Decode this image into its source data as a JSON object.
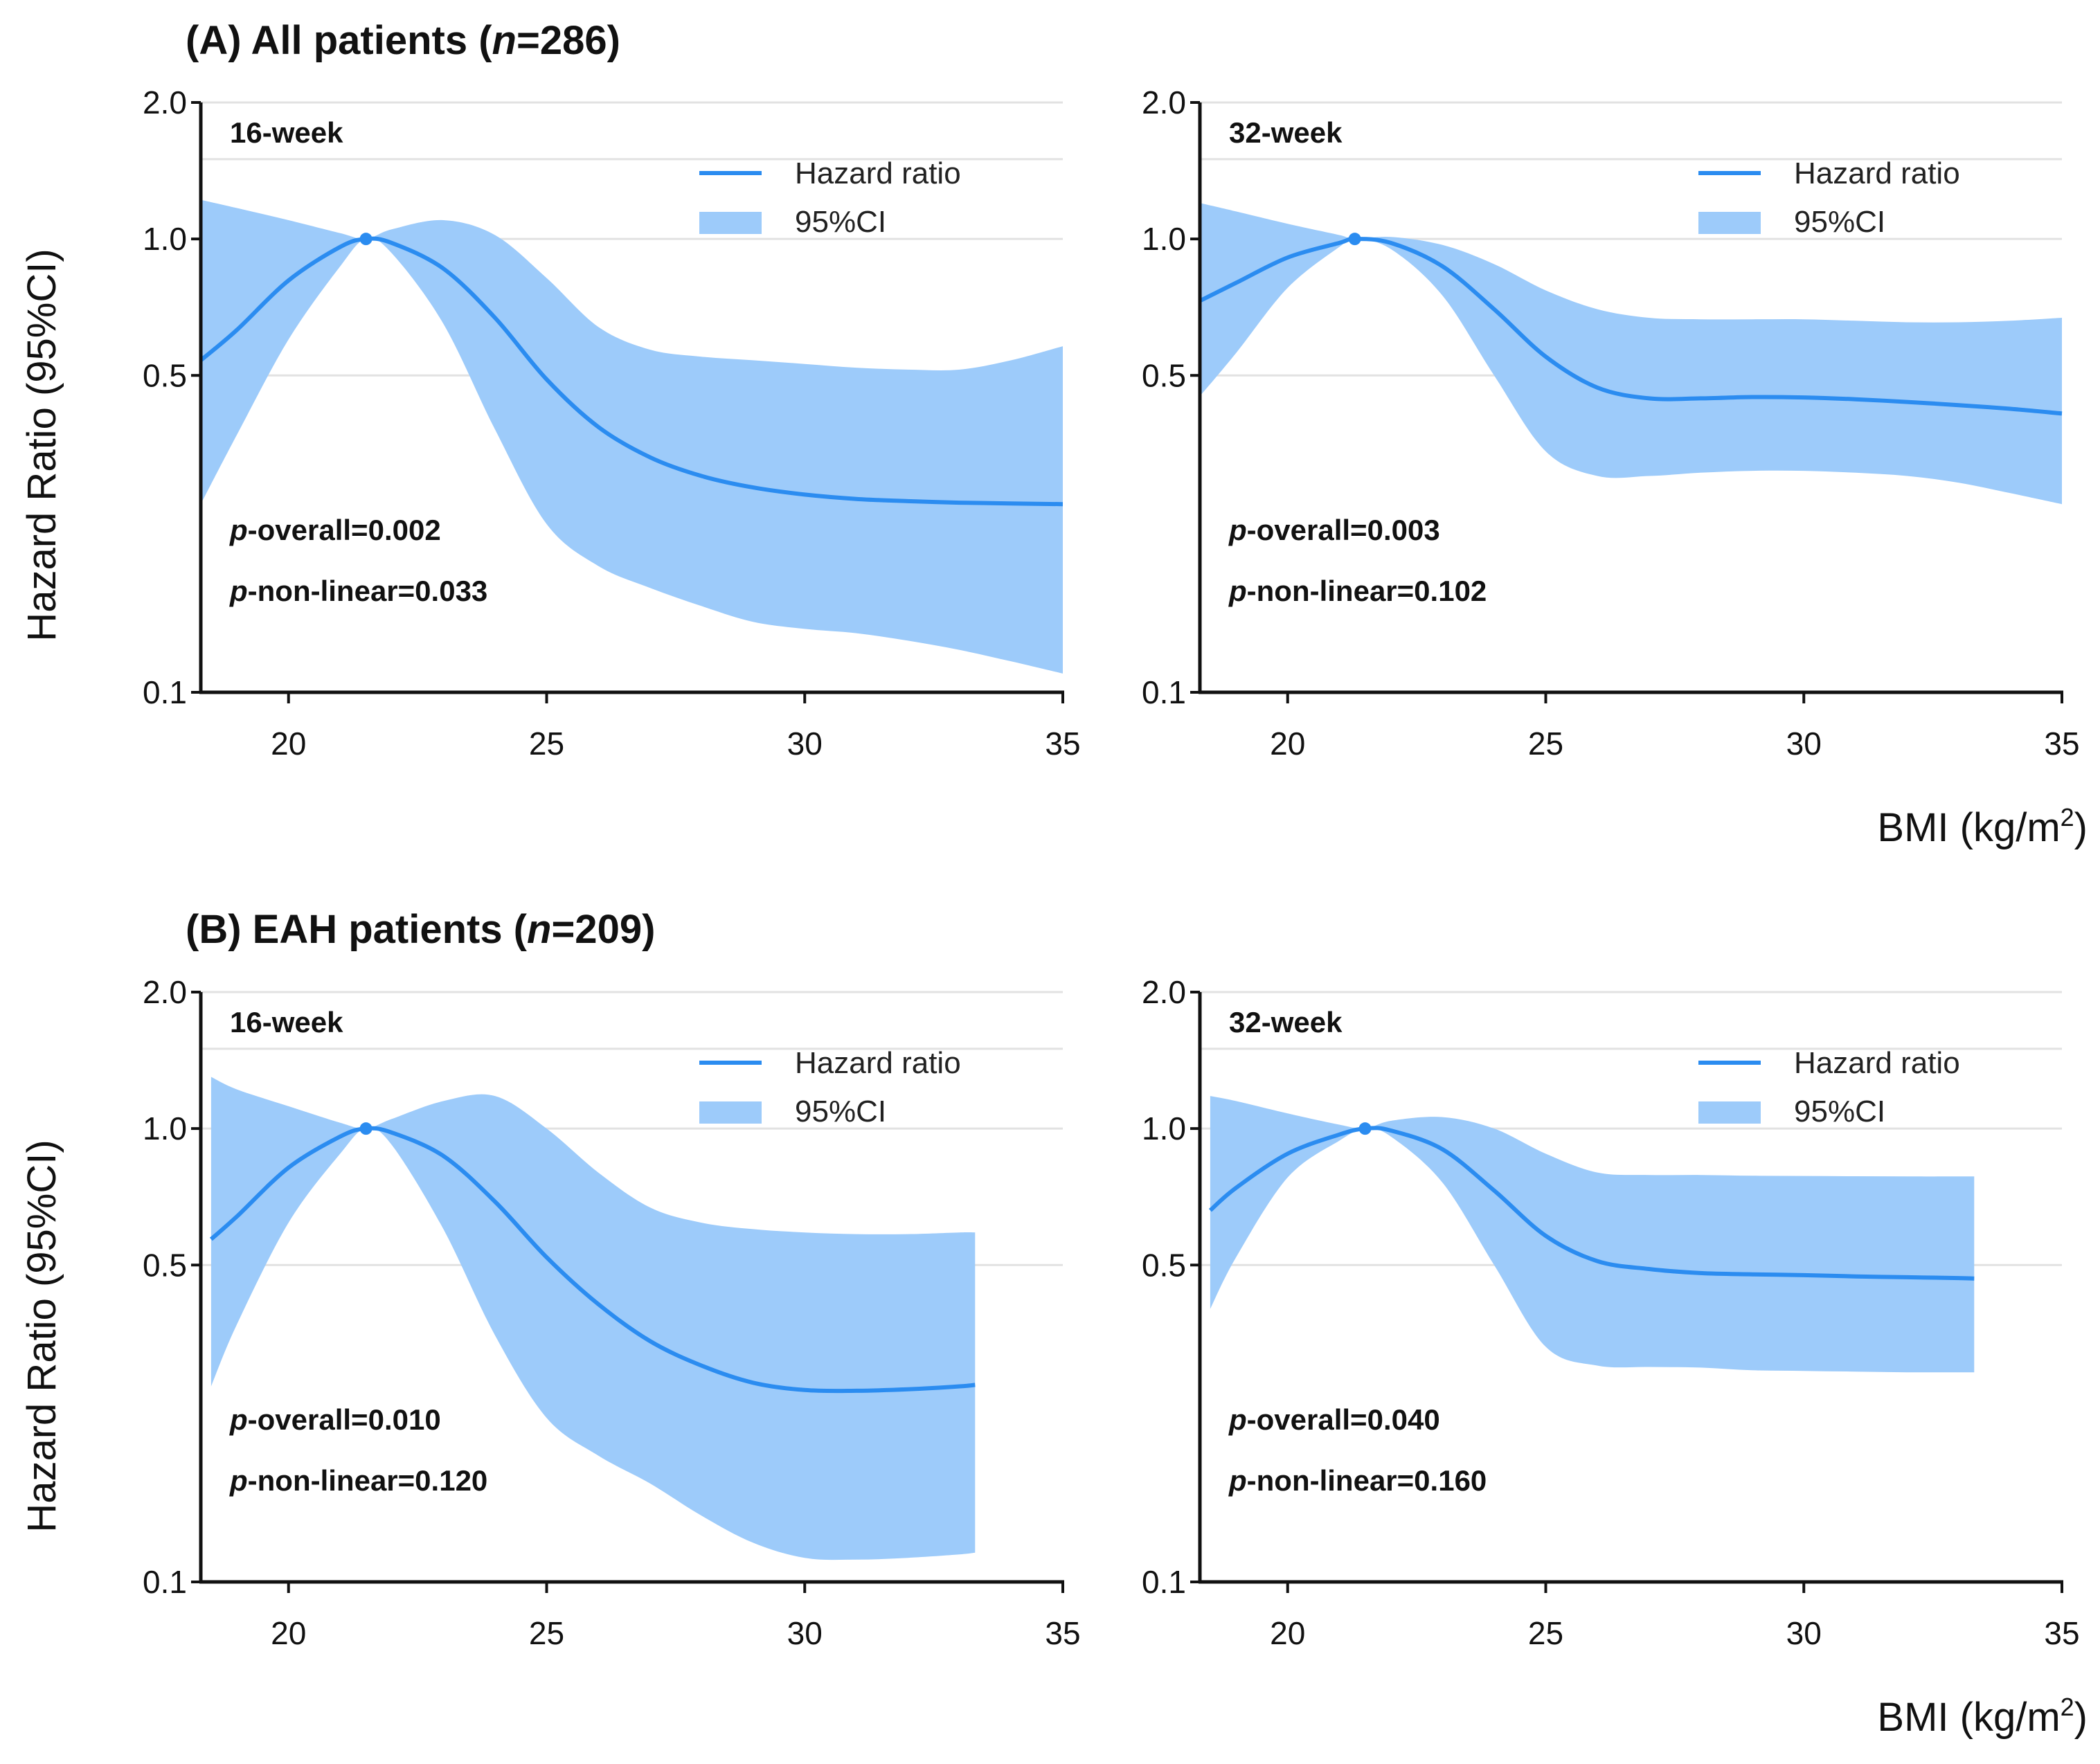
{
  "colors": {
    "line": "#2b8cf0",
    "band": "#9dcbfa",
    "grid": "#e2e2e2",
    "axis": "#111111"
  },
  "figure": {
    "section_a": {
      "prefix": "(A) All patients (",
      "n_var": "n",
      "suffix": "=286)"
    },
    "section_b": {
      "prefix": "(B) EAH patients (",
      "n_var": "n",
      "suffix": "=209)"
    },
    "y_axis_title": "Hazard Ratio (95%CI)",
    "x_axis_title_main": "BMI (kg/m",
    "x_axis_title_sup": "2",
    "x_axis_title_end": ")"
  },
  "chart_data": [
    {
      "id": "a16",
      "type": "line",
      "subtitle": "16-week",
      "xlabel": "BMI (kg/m2)",
      "ylabel": "Hazard Ratio (95%CI)",
      "yscale": "log",
      "xlim": [
        18.3,
        35
      ],
      "ylim": [
        0.1,
        2.0
      ],
      "xticks": [
        "20",
        "25",
        "30",
        "35"
      ],
      "yticks": [
        "0.1",
        "0.5",
        "1.0",
        "2.0"
      ],
      "yticks_values": [
        0.1,
        0.5,
        1.0,
        2.0
      ],
      "xticks_values": [
        20,
        25,
        30,
        35
      ],
      "grid_lines": [
        0.5,
        1.0,
        1.5,
        2.0
      ],
      "legend": [
        "Hazard ratio",
        "95%CI"
      ],
      "reference_point": {
        "x": 21.5,
        "y": 1.0
      },
      "p_overall": "=0.002",
      "p_nonlinear": "=0.033",
      "series": [
        {
          "name": "Hazard ratio",
          "x": [
            18.3,
            19,
            20,
            21,
            21.5,
            22,
            23,
            24,
            25,
            26,
            27,
            28,
            29,
            30,
            31,
            32,
            33,
            34,
            35
          ],
          "values": [
            0.54,
            0.63,
            0.81,
            0.96,
            1.0,
            0.98,
            0.86,
            0.67,
            0.49,
            0.385,
            0.33,
            0.3,
            0.283,
            0.273,
            0.267,
            0.264,
            0.262,
            0.261,
            0.26
          ]
        },
        {
          "name": "95%CI lower",
          "x": [
            18.3,
            19,
            20,
            21,
            21.5,
            22,
            23,
            24,
            25,
            26,
            27,
            28,
            29,
            30,
            31,
            32,
            33,
            34,
            35
          ],
          "values": [
            0.26,
            0.37,
            0.6,
            0.87,
            1.0,
            0.93,
            0.65,
            0.38,
            0.235,
            0.19,
            0.17,
            0.155,
            0.143,
            0.138,
            0.135,
            0.13,
            0.124,
            0.117,
            0.11
          ]
        },
        {
          "name": "95%CI upper",
          "x": [
            18.3,
            19,
            20,
            21,
            21.5,
            22,
            23,
            24,
            25,
            26,
            27,
            28,
            29,
            30,
            31,
            32,
            33,
            34,
            35
          ],
          "values": [
            1.22,
            1.17,
            1.1,
            1.03,
            1.0,
            1.05,
            1.1,
            1.02,
            0.82,
            0.64,
            0.57,
            0.55,
            0.54,
            0.53,
            0.52,
            0.515,
            0.515,
            0.54,
            0.58
          ]
        }
      ]
    },
    {
      "id": "a32",
      "type": "line",
      "subtitle": "32-week",
      "xlabel": "BMI (kg/m2)",
      "ylabel": "Hazard Ratio (95%CI)",
      "yscale": "log",
      "xlim": [
        18.3,
        35
      ],
      "ylim": [
        0.1,
        2.0
      ],
      "xticks": [
        "20",
        "25",
        "30",
        "35"
      ],
      "yticks": [
        "0.1",
        "0.5",
        "1.0",
        "2.0"
      ],
      "yticks_values": [
        0.1,
        0.5,
        1.0,
        2.0
      ],
      "xticks_values": [
        20,
        25,
        30,
        35
      ],
      "grid_lines": [
        0.5,
        1.0,
        1.5,
        2.0
      ],
      "legend": [
        "Hazard ratio",
        "95%CI"
      ],
      "reference_point": {
        "x": 21.3,
        "y": 1.0
      },
      "p_overall": "=0.003",
      "p_nonlinear": "=0.102",
      "series": [
        {
          "name": "Hazard ratio",
          "x": [
            18.3,
            19,
            20,
            21,
            21.3,
            22,
            23,
            24,
            25,
            26,
            27,
            28,
            29,
            30,
            31,
            32,
            33,
            34,
            35
          ],
          "values": [
            0.73,
            0.8,
            0.91,
            0.98,
            1.0,
            0.98,
            0.87,
            0.7,
            0.55,
            0.47,
            0.445,
            0.445,
            0.448,
            0.447,
            0.443,
            0.437,
            0.43,
            0.422,
            0.412
          ]
        },
        {
          "name": "95%CI lower",
          "x": [
            18.3,
            19,
            20,
            21,
            21.3,
            22,
            23,
            24,
            25,
            26,
            27,
            28,
            29,
            30,
            31,
            32,
            33,
            34,
            35
          ],
          "values": [
            0.45,
            0.56,
            0.78,
            0.96,
            1.0,
            0.95,
            0.75,
            0.5,
            0.34,
            0.3,
            0.3,
            0.305,
            0.308,
            0.308,
            0.305,
            0.3,
            0.29,
            0.275,
            0.26
          ]
        },
        {
          "name": "95%CI upper",
          "x": [
            18.3,
            19,
            20,
            21,
            21.3,
            22,
            23,
            24,
            25,
            26,
            27,
            28,
            29,
            30,
            31,
            32,
            33,
            34,
            35
          ],
          "values": [
            1.2,
            1.15,
            1.08,
            1.02,
            1.0,
            1.01,
            0.97,
            0.88,
            0.77,
            0.7,
            0.67,
            0.665,
            0.665,
            0.665,
            0.66,
            0.655,
            0.655,
            0.66,
            0.67
          ]
        }
      ]
    },
    {
      "id": "b16",
      "type": "line",
      "subtitle": "16-week",
      "xlabel": "BMI (kg/m2)",
      "ylabel": "Hazard Ratio (95%CI)",
      "yscale": "log",
      "xlim": [
        18.3,
        35
      ],
      "ylim": [
        0.1,
        2.0
      ],
      "xticks": [
        "20",
        "25",
        "30",
        "35"
      ],
      "yticks": [
        "0.1",
        "0.5",
        "1.0",
        "2.0"
      ],
      "yticks_values": [
        0.1,
        0.5,
        1.0,
        2.0
      ],
      "xticks_values": [
        20,
        25,
        30,
        35
      ],
      "grid_lines": [
        0.5,
        1.0,
        1.5,
        2.0
      ],
      "legend": [
        "Hazard ratio",
        "95%CI"
      ],
      "reference_point": {
        "x": 21.5,
        "y": 1.0
      },
      "p_overall": "=0.010",
      "p_nonlinear": "=0.120",
      "series": [
        {
          "name": "Hazard ratio",
          "x": [
            18.5,
            19,
            20,
            21,
            21.5,
            22,
            23,
            24,
            25,
            26,
            27,
            28,
            29,
            30,
            31,
            32,
            33,
            33.3
          ],
          "values": [
            0.57,
            0.64,
            0.82,
            0.96,
            1.0,
            0.98,
            0.87,
            0.69,
            0.52,
            0.41,
            0.34,
            0.3,
            0.275,
            0.265,
            0.264,
            0.266,
            0.27,
            0.272
          ]
        },
        {
          "name": "95%CI lower",
          "x": [
            18.5,
            19,
            20,
            21,
            21.5,
            22,
            23,
            24,
            25,
            26,
            27,
            28,
            29,
            30,
            31,
            32,
            33,
            33.3
          ],
          "values": [
            0.27,
            0.37,
            0.62,
            0.88,
            1.0,
            0.92,
            0.6,
            0.35,
            0.23,
            0.19,
            0.165,
            0.14,
            0.122,
            0.113,
            0.112,
            0.113,
            0.115,
            0.116
          ]
        },
        {
          "name": "95%CI upper",
          "x": [
            18.5,
            19,
            20,
            21,
            21.5,
            22,
            23,
            24,
            25,
            26,
            27,
            28,
            29,
            30,
            31,
            32,
            33,
            33.3
          ],
          "values": [
            1.3,
            1.22,
            1.12,
            1.03,
            1.0,
            1.05,
            1.15,
            1.18,
            1.0,
            0.8,
            0.67,
            0.62,
            0.6,
            0.59,
            0.585,
            0.585,
            0.59,
            0.59
          ]
        }
      ]
    },
    {
      "id": "b32",
      "type": "line",
      "subtitle": "32-week",
      "xlabel": "BMI (kg/m2)",
      "ylabel": "Hazard Ratio (95%CI)",
      "yscale": "log",
      "xlim": [
        18.3,
        35
      ],
      "ylim": [
        0.1,
        2.0
      ],
      "xticks": [
        "20",
        "25",
        "30",
        "35"
      ],
      "yticks": [
        "0.1",
        "0.5",
        "1.0",
        "2.0"
      ],
      "yticks_values": [
        0.1,
        0.5,
        1.0,
        2.0
      ],
      "xticks_values": [
        20,
        25,
        30,
        35
      ],
      "grid_lines": [
        0.5,
        1.0,
        1.5,
        2.0
      ],
      "legend": [
        "Hazard ratio",
        "95%CI"
      ],
      "reference_point": {
        "x": 21.5,
        "y": 1.0
      },
      "p_overall": "=0.040",
      "p_nonlinear": "=0.160",
      "series": [
        {
          "name": "Hazard ratio",
          "x": [
            18.5,
            19,
            20,
            21,
            21.5,
            22,
            23,
            24,
            25,
            26,
            27,
            28,
            29,
            30,
            31,
            32,
            33,
            33.3
          ],
          "values": [
            0.66,
            0.74,
            0.88,
            0.97,
            1.0,
            0.99,
            0.9,
            0.73,
            0.58,
            0.51,
            0.49,
            0.48,
            0.477,
            0.475,
            0.472,
            0.47,
            0.468,
            0.467
          ]
        },
        {
          "name": "95%CI lower",
          "x": [
            18.5,
            19,
            20,
            21,
            21.5,
            22,
            23,
            24,
            25,
            26,
            27,
            28,
            29,
            30,
            31,
            32,
            33,
            33.3
          ],
          "values": [
            0.4,
            0.52,
            0.78,
            0.94,
            1.0,
            0.96,
            0.76,
            0.5,
            0.33,
            0.3,
            0.298,
            0.297,
            0.293,
            0.292,
            0.291,
            0.29,
            0.29,
            0.29
          ]
        },
        {
          "name": "95%CI upper",
          "x": [
            18.5,
            19,
            20,
            21,
            21.5,
            22,
            23,
            24,
            25,
            26,
            27,
            28,
            29,
            30,
            31,
            32,
            33,
            33.3
          ],
          "values": [
            1.18,
            1.15,
            1.08,
            1.02,
            1.0,
            1.04,
            1.06,
            1.0,
            0.88,
            0.8,
            0.79,
            0.79,
            0.787,
            0.786,
            0.785,
            0.784,
            0.784,
            0.784
          ]
        }
      ]
    }
  ]
}
